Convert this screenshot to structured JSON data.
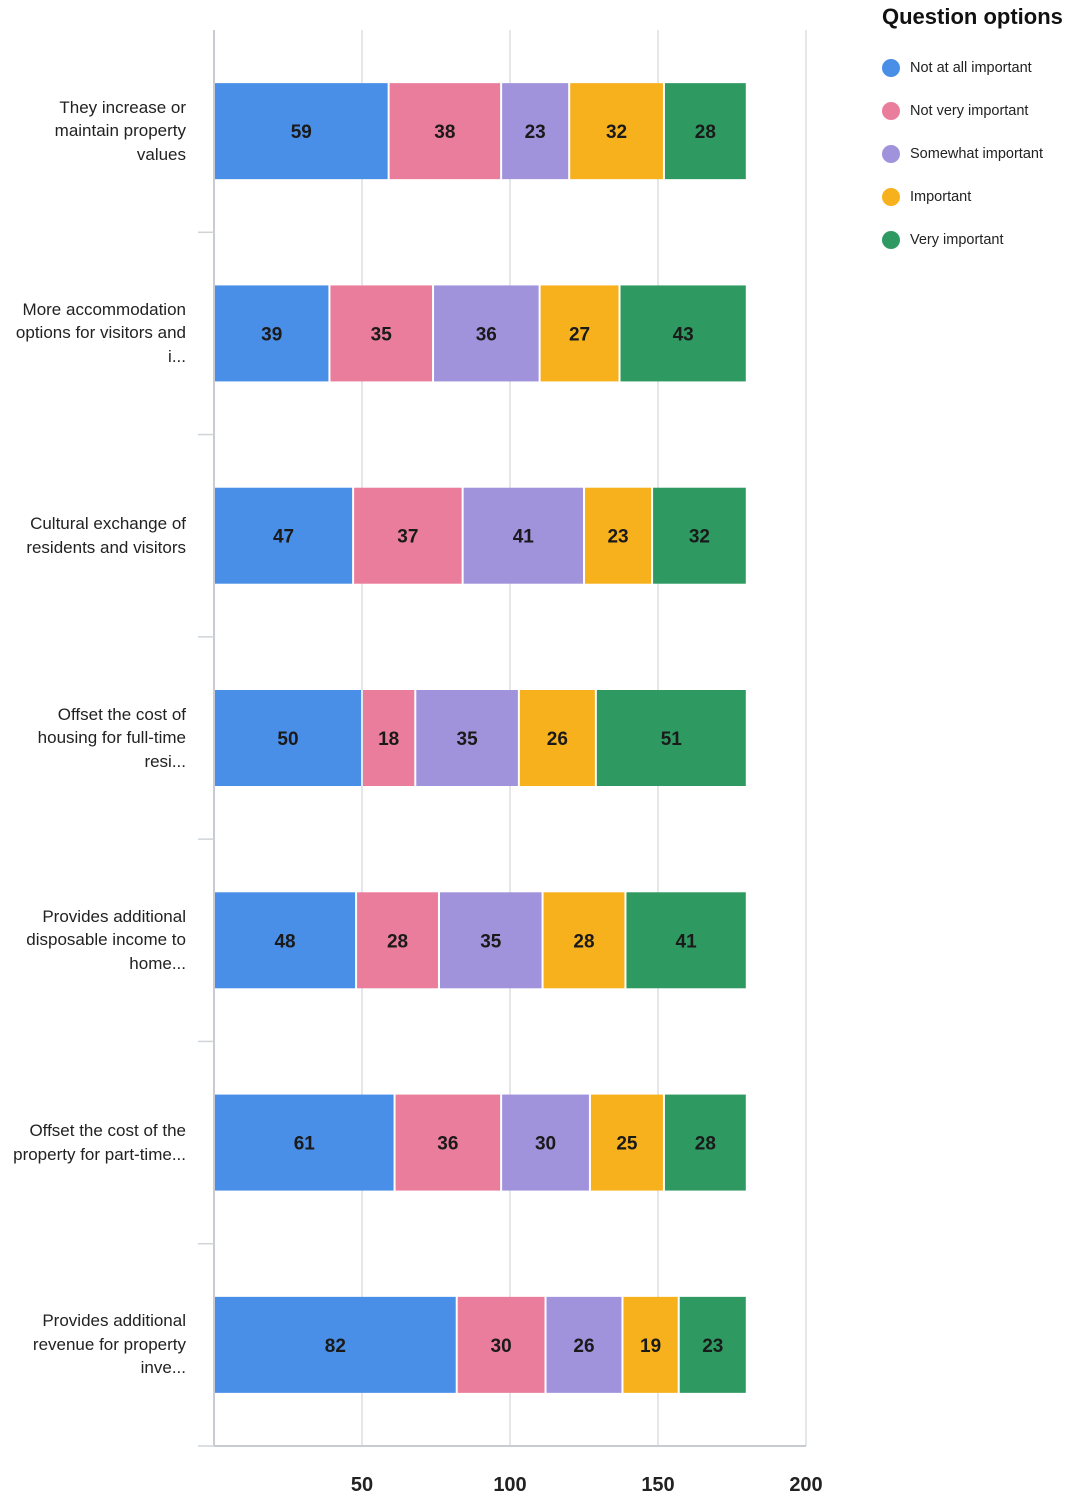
{
  "legend": {
    "title": "Question options",
    "items": [
      {
        "label": "Not at all important",
        "color": "#4a8fe7"
      },
      {
        "label": "Not very important",
        "color": "#ea7d9b"
      },
      {
        "label": "Somewhat important",
        "color": "#a093dc"
      },
      {
        "label": "Important",
        "color": "#f7b11d"
      },
      {
        "label": "Very important",
        "color": "#2e9a62"
      }
    ]
  },
  "chart_data": {
    "type": "bar",
    "orientation": "horizontal",
    "stacked": true,
    "categories": [
      "They increase or maintain property values",
      "More accommodation options for visitors and i...",
      "Cultural exchange of residents and visitors",
      "Offset the cost of housing for full-time resi...",
      "Provides additional disposable income to home...",
      "Offset the cost of the property for part-time...",
      "Provides additional revenue for property inve..."
    ],
    "series": [
      {
        "name": "Not at all important",
        "color": "#4a8fe7",
        "values": [
          59,
          39,
          47,
          50,
          48,
          61,
          82
        ]
      },
      {
        "name": "Not very important",
        "color": "#ea7d9b",
        "values": [
          38,
          35,
          37,
          18,
          28,
          36,
          30
        ]
      },
      {
        "name": "Somewhat important",
        "color": "#a093dc",
        "values": [
          23,
          36,
          41,
          35,
          35,
          30,
          26
        ]
      },
      {
        "name": "Important",
        "color": "#f7b11d",
        "values": [
          32,
          27,
          23,
          26,
          28,
          25,
          19
        ]
      },
      {
        "name": "Very important",
        "color": "#2e9a62",
        "values": [
          28,
          43,
          32,
          51,
          41,
          28,
          23
        ]
      }
    ],
    "x_ticks": [
      "50",
      "100",
      "150",
      "200"
    ],
    "xlim": [
      0,
      200
    ],
    "grid": true,
    "legend_position": "top-right",
    "data_labels": true
  }
}
